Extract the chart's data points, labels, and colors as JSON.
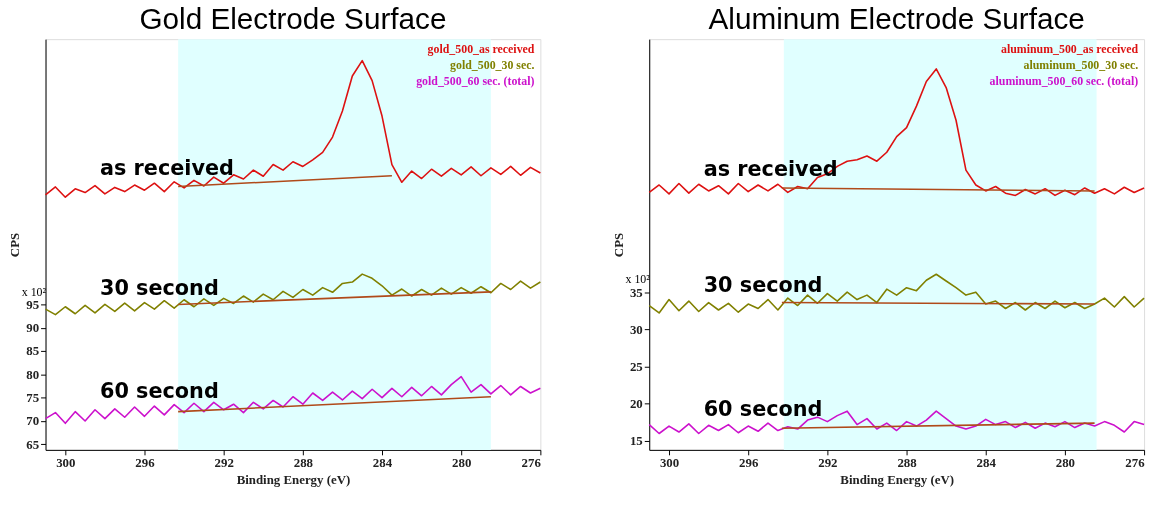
{
  "chart_data": [
    {
      "type": "line",
      "title": "Gold Electrode Surface",
      "xlabel": "Binding Energy (eV)",
      "ylabel": "CPS",
      "xlim": [
        301,
        276
      ],
      "xticks": [
        300,
        296,
        292,
        288,
        284,
        280,
        276
      ],
      "ylim": [
        63.8,
        151.9
      ],
      "yticks": [
        65,
        70,
        75,
        80,
        85,
        90,
        95
      ],
      "grid": false,
      "legend": "top right",
      "marker": "none",
      "line_style": "solid",
      "bands": [
        {
          "axis": "x",
          "from": 294.3,
          "to": 278.5,
          "color": "#e0ffff"
        }
      ],
      "annotations": [
        "x 10²",
        "as received",
        "30 second",
        "60 second"
      ],
      "x": [
        301,
        300.5,
        300,
        299.5,
        299,
        298.5,
        298,
        297.5,
        297,
        296.5,
        296,
        295.5,
        295,
        294.5,
        294,
        293.5,
        293,
        292.5,
        292,
        291.5,
        291,
        290.5,
        290,
        289.5,
        289,
        288.5,
        288,
        287.5,
        287,
        286.5,
        286,
        285.5,
        285,
        284.5,
        284,
        283.5,
        283,
        282.5,
        282,
        281.5,
        281,
        280.5,
        280,
        279.5,
        279,
        278.5,
        278,
        277.5,
        277,
        276.5,
        276
      ],
      "series": [
        {
          "name": "gold_500_as received",
          "color": "#dd1111",
          "values": [
            118.5,
            120.2,
            118.0,
            119.8,
            119.0,
            120.5,
            118.7,
            120.1,
            119.2,
            120.6,
            119.5,
            121.0,
            119.2,
            121.3,
            120.0,
            121.6,
            120.4,
            122.3,
            121.0,
            122.8,
            121.9,
            123.8,
            122.5,
            125.0,
            123.8,
            125.6,
            124.6,
            126.0,
            127.6,
            130.9,
            136.5,
            144.0,
            147.3,
            143.0,
            135.4,
            125.0,
            121.2,
            123.6,
            122.0,
            124.0,
            122.5,
            124.2,
            122.8,
            124.5,
            122.6,
            124.3,
            122.9,
            124.6,
            122.7,
            124.4,
            123.2
          ]
        },
        {
          "name": "gold_500_30 sec.",
          "color": "#808000",
          "values": [
            94.0,
            92.8,
            94.5,
            93.0,
            94.8,
            93.2,
            95.0,
            93.5,
            95.3,
            93.6,
            95.4,
            94.0,
            95.8,
            94.2,
            96.0,
            94.5,
            96.2,
            94.8,
            96.3,
            95.2,
            96.8,
            95.5,
            97.2,
            96.0,
            97.8,
            96.5,
            98.2,
            97.0,
            98.6,
            97.6,
            99.5,
            99.8,
            101.5,
            100.6,
            99.0,
            97.0,
            98.3,
            96.8,
            98.2,
            97.0,
            98.5,
            97.2,
            98.6,
            97.4,
            98.8,
            97.5,
            99.5,
            98.2,
            100.0,
            98.5,
            99.8
          ]
        },
        {
          "name": "gold_500_60 sec. (total)",
          "color": "#cc11cc",
          "values": [
            70.5,
            71.8,
            69.5,
            72.0,
            70.0,
            72.4,
            70.5,
            72.6,
            70.8,
            73.0,
            71.0,
            73.2,
            71.3,
            73.5,
            71.8,
            73.8,
            72.0,
            74.0,
            72.4,
            73.6,
            71.8,
            74.0,
            72.6,
            74.4,
            73.0,
            75.2,
            73.6,
            76.0,
            74.4,
            76.2,
            74.5,
            76.4,
            74.8,
            76.8,
            75.0,
            77.0,
            75.2,
            77.2,
            75.4,
            77.4,
            75.6,
            77.8,
            79.5,
            76.2,
            77.8,
            75.8,
            77.6,
            75.6,
            77.4,
            76.0,
            77.0
          ]
        },
        {
          "type": "line",
          "color": "#b04a1a",
          "x": [
            294.3,
            283.5
          ],
          "values": [
            120.3,
            122.6
          ]
        },
        {
          "type": "line",
          "color": "#b04a1a",
          "x": [
            294.3,
            278.5
          ],
          "values": [
            95.0,
            97.7
          ]
        },
        {
          "type": "line",
          "color": "#b04a1a",
          "x": [
            294.3,
            278.5
          ],
          "values": [
            72.0,
            75.2
          ]
        }
      ]
    },
    {
      "type": "line",
      "title": "Aluminum Electrode Surface",
      "xlabel": "Binding Energy (eV)",
      "ylabel": "CPS",
      "xlim": [
        301,
        276
      ],
      "xticks": [
        300,
        296,
        292,
        288,
        284,
        280,
        276
      ],
      "ylim": [
        13.8,
        69.0
      ],
      "yticks": [
        15,
        20,
        25,
        30,
        35
      ],
      "grid": false,
      "legend": "top right",
      "marker": "none",
      "line_style": "solid",
      "bands": [
        {
          "axis": "x",
          "from": 294.2,
          "to": 278.4,
          "color": "#e0ffff"
        }
      ],
      "annotations": [
        "x 10²",
        "as received",
        "30 second",
        "60 second"
      ],
      "x": [
        301,
        300.5,
        300,
        299.5,
        299,
        298.5,
        298,
        297.5,
        297,
        296.5,
        296,
        295.5,
        295,
        294.5,
        294,
        293.5,
        293,
        292.5,
        292,
        291.5,
        291,
        290.5,
        290,
        289.5,
        289,
        288.5,
        288,
        287.5,
        287,
        286.5,
        286,
        285.5,
        285,
        284.5,
        284,
        283.5,
        283,
        282.5,
        282,
        281.5,
        281,
        280.5,
        280,
        279.5,
        279,
        278.5,
        278,
        277.5,
        277,
        276.5,
        276
      ],
      "series": [
        {
          "name": "aluminum_500_as received",
          "color": "#dd1111",
          "values": [
            48.4,
            49.4,
            48.2,
            49.6,
            48.3,
            49.5,
            48.6,
            49.3,
            48.2,
            49.6,
            48.5,
            49.4,
            48.6,
            49.5,
            48.4,
            49.2,
            48.9,
            50.4,
            50.9,
            51.9,
            52.6,
            52.8,
            53.3,
            52.6,
            53.8,
            55.9,
            57.1,
            60.0,
            63.3,
            65.0,
            62.5,
            58.1,
            51.4,
            49.4,
            48.6,
            49.2,
            48.3,
            48.0,
            48.8,
            48.2,
            48.9,
            48.0,
            48.7,
            48.1,
            49.0,
            48.3,
            48.9,
            48.2,
            49.1,
            48.4,
            49.0
          ]
        },
        {
          "name": "aluminum_500_30 sec.",
          "color": "#808000",
          "values": [
            33.2,
            32.2,
            34.0,
            32.5,
            33.8,
            32.4,
            33.6,
            32.6,
            33.5,
            32.3,
            33.4,
            32.8,
            34.0,
            32.6,
            34.2,
            33.2,
            34.6,
            33.5,
            34.8,
            33.8,
            35.0,
            34.0,
            34.6,
            33.6,
            35.4,
            34.6,
            35.6,
            35.2,
            36.6,
            37.4,
            36.5,
            35.6,
            34.6,
            35.0,
            33.4,
            33.8,
            32.8,
            33.6,
            32.6,
            33.6,
            32.8,
            33.8,
            32.9,
            33.6,
            32.8,
            33.4,
            34.2,
            33.0,
            34.4,
            33.0,
            34.2
          ]
        },
        {
          "name": "aluminum_500_60 sec. (total)",
          "color": "#cc11cc",
          "values": [
            17.2,
            16.0,
            17.0,
            16.2,
            17.3,
            16.0,
            17.1,
            16.4,
            17.2,
            16.1,
            17.0,
            16.3,
            17.4,
            16.4,
            16.9,
            16.6,
            17.8,
            18.2,
            17.6,
            18.4,
            19.0,
            17.2,
            18.0,
            16.6,
            17.4,
            16.4,
            17.6,
            17.0,
            17.8,
            19.0,
            18.0,
            17.0,
            16.6,
            17.0,
            17.9,
            17.2,
            17.6,
            16.8,
            17.5,
            16.7,
            17.4,
            16.9,
            17.6,
            16.8,
            17.4,
            17.0,
            17.6,
            17.1,
            16.2,
            17.6,
            17.2
          ]
        },
        {
          "type": "line",
          "color": "#b04a1a",
          "x": [
            294.3,
            278.5
          ],
          "values": [
            49.0,
            48.6
          ]
        },
        {
          "type": "line",
          "color": "#b04a1a",
          "x": [
            294.3,
            278.5
          ],
          "values": [
            33.6,
            33.4
          ]
        },
        {
          "type": "line",
          "color": "#b04a1a",
          "x": [
            294.3,
            278.5
          ],
          "values": [
            16.7,
            17.4
          ]
        }
      ]
    }
  ]
}
